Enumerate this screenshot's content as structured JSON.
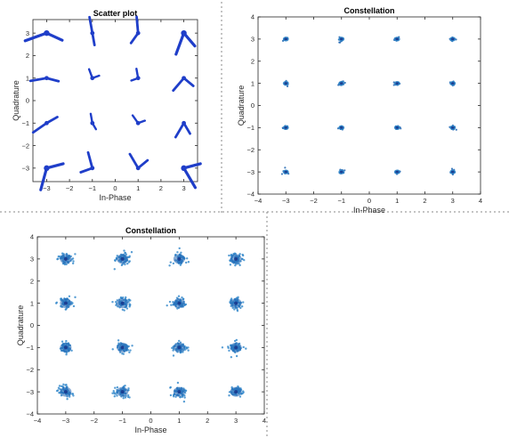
{
  "colors": {
    "marker": "#1f3ec9",
    "cluster_outer": "#2f86c9",
    "cluster_mid": "#2266b2",
    "cluster_core": "#1a3f92"
  },
  "chart_data": [
    {
      "type": "scatter",
      "title": "Scatter plot",
      "xlabel": "In-Phase",
      "ylabel": "Quadrature",
      "xlim": [
        -3.6,
        3.6
      ],
      "ylim": [
        -3.6,
        3.6
      ],
      "xticks": [
        -3,
        -2,
        -1,
        0,
        1,
        2,
        3
      ],
      "yticks": [
        -3,
        -2,
        -1,
        0,
        1,
        2,
        3
      ],
      "grid": false,
      "marker_color": "#1f3ec9",
      "points": [
        {
          "x": -3,
          "y": 3
        },
        {
          "x": -1,
          "y": 3
        },
        {
          "x": 1,
          "y": 3
        },
        {
          "x": 3,
          "y": 3
        },
        {
          "x": -3,
          "y": 1
        },
        {
          "x": -1,
          "y": 1
        },
        {
          "x": 1,
          "y": 1
        },
        {
          "x": 3,
          "y": 1
        },
        {
          "x": -3,
          "y": -1
        },
        {
          "x": -1,
          "y": -1
        },
        {
          "x": 1,
          "y": -1
        },
        {
          "x": 3,
          "y": -1
        },
        {
          "x": -3,
          "y": -3
        },
        {
          "x": -1,
          "y": -3
        },
        {
          "x": 1,
          "y": -3
        },
        {
          "x": 3,
          "y": -3
        }
      ]
    },
    {
      "type": "scatter",
      "title": "Constellation",
      "xlabel": "In-Phase",
      "ylabel": "Quadrature",
      "xlim": [
        -4,
        4
      ],
      "ylim": [
        -4,
        4
      ],
      "xticks": [
        -4,
        -3,
        -2,
        -1,
        0,
        1,
        2,
        3,
        4
      ],
      "yticks": [
        -4,
        -3,
        -2,
        -1,
        0,
        1,
        2,
        3,
        4
      ],
      "grid": false,
      "marker_color": "#2f86c9",
      "points": [
        {
          "x": -3,
          "y": 3
        },
        {
          "x": -1,
          "y": 3
        },
        {
          "x": 1,
          "y": 3
        },
        {
          "x": 3,
          "y": 3
        },
        {
          "x": -3,
          "y": 1
        },
        {
          "x": -1,
          "y": 1
        },
        {
          "x": 1,
          "y": 1
        },
        {
          "x": 3,
          "y": 1
        },
        {
          "x": -3,
          "y": -1
        },
        {
          "x": -1,
          "y": -1
        },
        {
          "x": 1,
          "y": -1
        },
        {
          "x": 3,
          "y": -1
        },
        {
          "x": -3,
          "y": -3
        },
        {
          "x": -1,
          "y": -3
        },
        {
          "x": 1,
          "y": -3
        },
        {
          "x": 3,
          "y": -3
        }
      ]
    },
    {
      "type": "scatter",
      "title": "Constellation",
      "xlabel": "In-Phase",
      "ylabel": "Quadrature",
      "xlim": [
        -4,
        4
      ],
      "ylim": [
        -4,
        4
      ],
      "xticks": [
        -4,
        -3,
        -2,
        -1,
        0,
        1,
        2,
        3,
        4
      ],
      "yticks": [
        -4,
        -3,
        -2,
        -1,
        0,
        1,
        2,
        3,
        4
      ],
      "grid": false,
      "marker_color": "#2f86c9",
      "points": [
        {
          "x": -3,
          "y": 3
        },
        {
          "x": -1,
          "y": 3
        },
        {
          "x": 1,
          "y": 3
        },
        {
          "x": 3,
          "y": 3
        },
        {
          "x": -3,
          "y": 1
        },
        {
          "x": -1,
          "y": 1
        },
        {
          "x": 1,
          "y": 1
        },
        {
          "x": 3,
          "y": 1
        },
        {
          "x": -3,
          "y": -1
        },
        {
          "x": -1,
          "y": -1
        },
        {
          "x": 1,
          "y": -1
        },
        {
          "x": 3,
          "y": -1
        },
        {
          "x": -3,
          "y": -3
        },
        {
          "x": -1,
          "y": -3
        },
        {
          "x": 1,
          "y": -3
        },
        {
          "x": 3,
          "y": -3
        }
      ]
    }
  ]
}
